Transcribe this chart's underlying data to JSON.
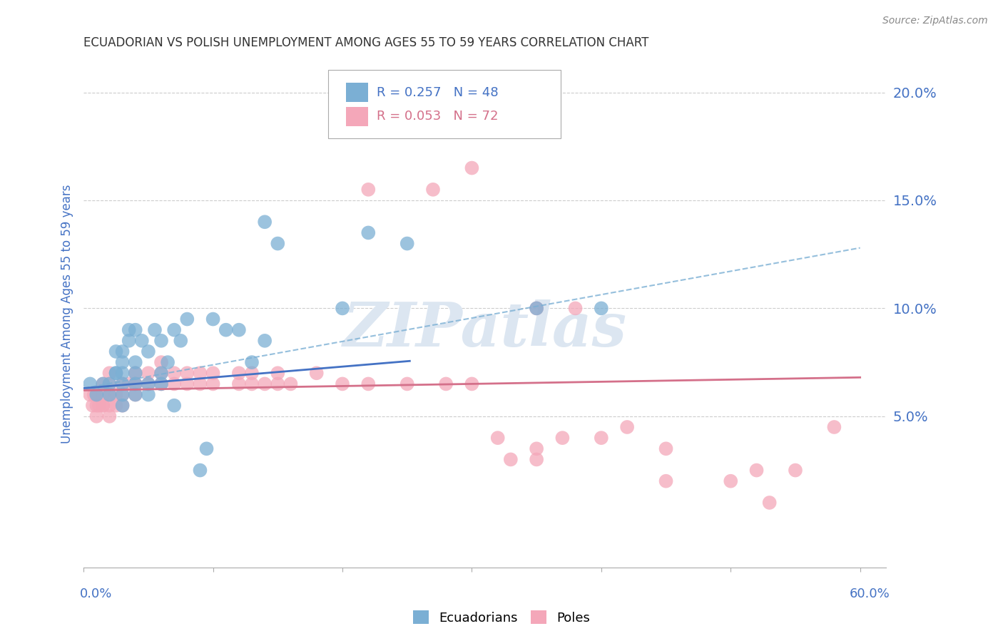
{
  "title": "ECUADORIAN VS POLISH UNEMPLOYMENT AMONG AGES 55 TO 59 YEARS CORRELATION CHART",
  "source": "Source: ZipAtlas.com",
  "ylabel": "Unemployment Among Ages 55 to 59 years",
  "xlim": [
    0.0,
    0.62
  ],
  "ylim": [
    -0.02,
    0.215
  ],
  "yticks": [
    0.05,
    0.1,
    0.15,
    0.2
  ],
  "ytick_labels": [
    "5.0%",
    "10.0%",
    "15.0%",
    "20.0%"
  ],
  "ecuadorians_color": "#7bafd4",
  "poles_color": "#f4a7b9",
  "trendline_ecuador_solid_color": "#4472c4",
  "trendline_ecuador_dash_color": "#7bafd4",
  "trendline_poland_color": "#d4708a",
  "background_color": "#ffffff",
  "watermark_color": "#dce6f1",
  "axis_label_color": "#4472c4",
  "tick_color": "#4472c4",
  "grid_color": "#cccccc",
  "r_ecu": "R = 0.257",
  "n_ecu": "N = 48",
  "r_pol": "R = 0.053",
  "n_pol": "N = 72",
  "ecuador_x": [
    0.005,
    0.01,
    0.015,
    0.02,
    0.02,
    0.025,
    0.025,
    0.025,
    0.03,
    0.03,
    0.03,
    0.03,
    0.03,
    0.03,
    0.035,
    0.035,
    0.04,
    0.04,
    0.04,
    0.04,
    0.04,
    0.045,
    0.05,
    0.05,
    0.05,
    0.055,
    0.06,
    0.06,
    0.06,
    0.065,
    0.07,
    0.07,
    0.075,
    0.08,
    0.09,
    0.095,
    0.1,
    0.11,
    0.12,
    0.13,
    0.14,
    0.14,
    0.15,
    0.2,
    0.22,
    0.25,
    0.35,
    0.4
  ],
  "ecuador_y": [
    0.065,
    0.06,
    0.065,
    0.06,
    0.065,
    0.07,
    0.07,
    0.08,
    0.055,
    0.06,
    0.065,
    0.07,
    0.075,
    0.08,
    0.085,
    0.09,
    0.06,
    0.065,
    0.07,
    0.075,
    0.09,
    0.085,
    0.06,
    0.065,
    0.08,
    0.09,
    0.065,
    0.07,
    0.085,
    0.075,
    0.055,
    0.09,
    0.085,
    0.095,
    0.025,
    0.035,
    0.095,
    0.09,
    0.09,
    0.075,
    0.085,
    0.14,
    0.13,
    0.1,
    0.135,
    0.13,
    0.1,
    0.1
  ],
  "poland_x": [
    0.005,
    0.007,
    0.008,
    0.01,
    0.01,
    0.01,
    0.012,
    0.015,
    0.015,
    0.015,
    0.015,
    0.02,
    0.02,
    0.02,
    0.02,
    0.02,
    0.025,
    0.025,
    0.03,
    0.03,
    0.03,
    0.035,
    0.04,
    0.04,
    0.04,
    0.04,
    0.05,
    0.05,
    0.06,
    0.06,
    0.06,
    0.07,
    0.07,
    0.08,
    0.08,
    0.09,
    0.09,
    0.1,
    0.1,
    0.12,
    0.12,
    0.13,
    0.13,
    0.14,
    0.15,
    0.15,
    0.16,
    0.18,
    0.2,
    0.22,
    0.25,
    0.28,
    0.3,
    0.32,
    0.33,
    0.35,
    0.35,
    0.37,
    0.38,
    0.4,
    0.42,
    0.45,
    0.45,
    0.5,
    0.52,
    0.53,
    0.55,
    0.22,
    0.27,
    0.3,
    0.35,
    0.58
  ],
  "poland_y": [
    0.06,
    0.055,
    0.06,
    0.05,
    0.055,
    0.06,
    0.055,
    0.055,
    0.06,
    0.065,
    0.055,
    0.055,
    0.06,
    0.065,
    0.07,
    0.05,
    0.055,
    0.06,
    0.055,
    0.06,
    0.065,
    0.065,
    0.06,
    0.065,
    0.07,
    0.065,
    0.065,
    0.07,
    0.065,
    0.07,
    0.075,
    0.065,
    0.07,
    0.065,
    0.07,
    0.065,
    0.07,
    0.065,
    0.07,
    0.065,
    0.07,
    0.065,
    0.07,
    0.065,
    0.065,
    0.07,
    0.065,
    0.07,
    0.065,
    0.065,
    0.065,
    0.065,
    0.065,
    0.04,
    0.03,
    0.03,
    0.035,
    0.04,
    0.1,
    0.04,
    0.045,
    0.035,
    0.02,
    0.02,
    0.025,
    0.01,
    0.025,
    0.155,
    0.155,
    0.165,
    0.1,
    0.045
  ],
  "trendline_ecu_x0": 0.0,
  "trendline_ecu_x1": 0.6,
  "trendline_ecu_y0": 0.063,
  "trendline_ecu_y1": 0.093,
  "trendline_ecu_dash_y0": 0.063,
  "trendline_ecu_dash_y1": 0.128,
  "trendline_pol_x0": 0.0,
  "trendline_pol_x1": 0.6,
  "trendline_pol_y0": 0.062,
  "trendline_pol_y1": 0.068
}
